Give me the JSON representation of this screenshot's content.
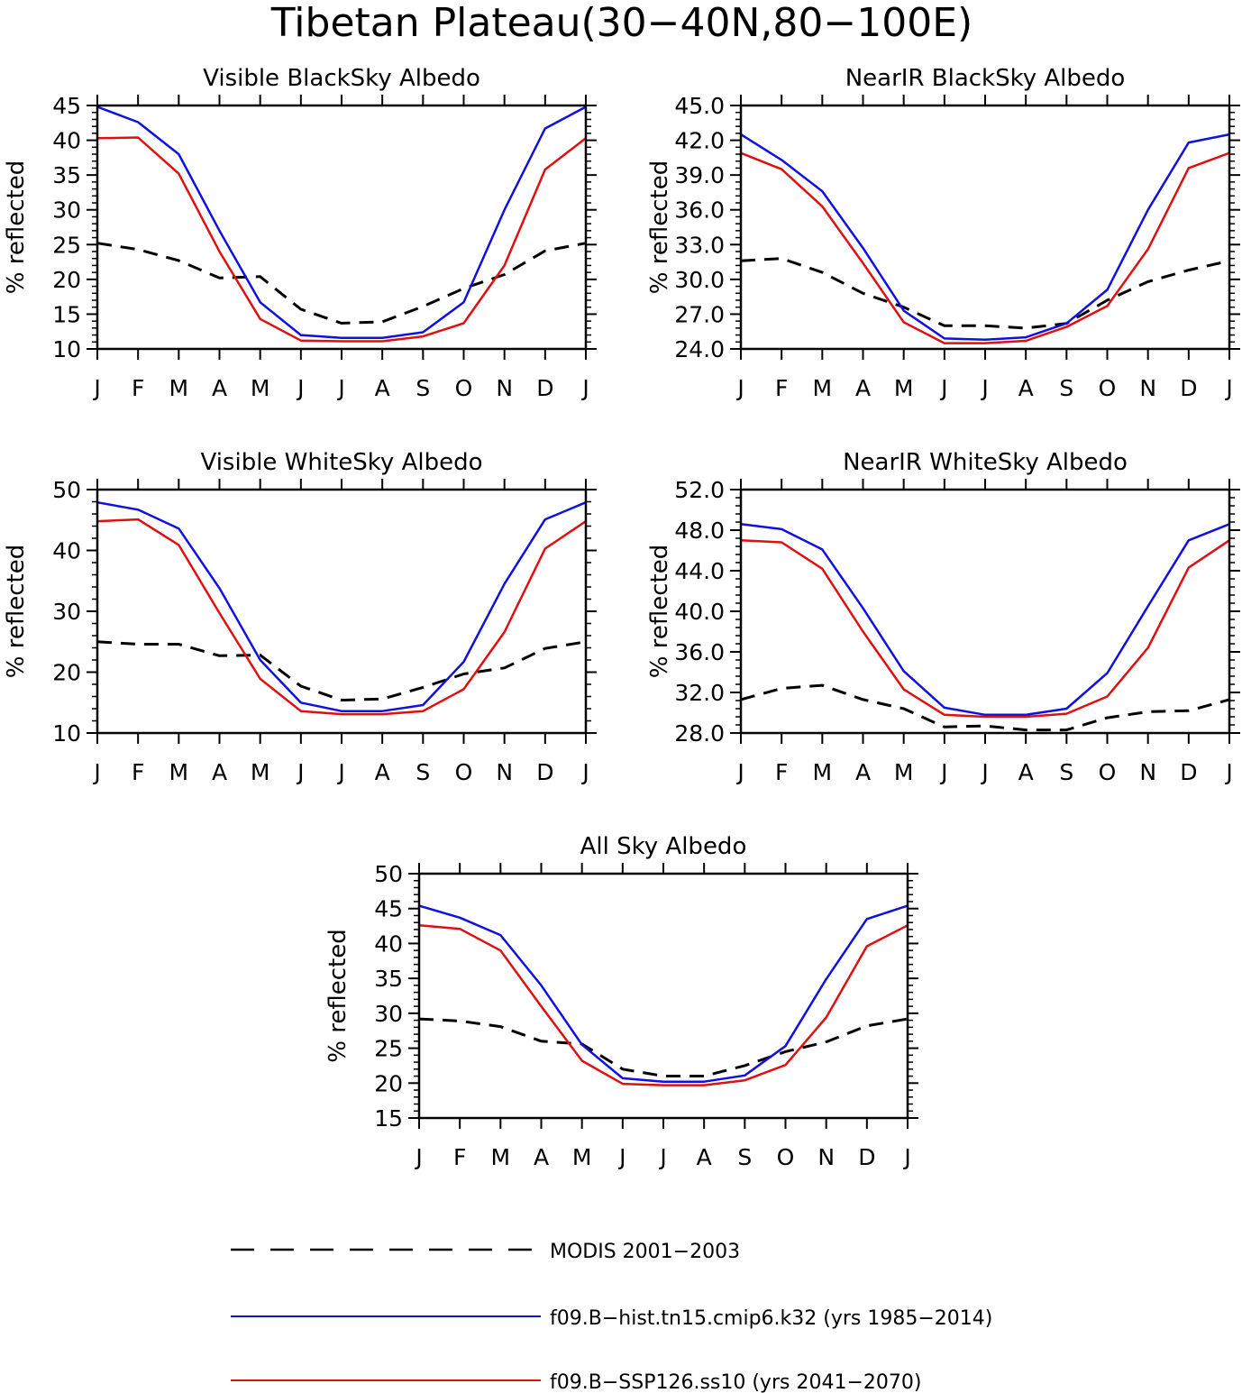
{
  "figure": {
    "title": "Tibetan Plateau(30−40N,80−100E)"
  },
  "colors": {
    "modis": "#000000",
    "hist": "#1010e0",
    "ssp": "#e01010"
  },
  "chart_data": [
    {
      "type": "line",
      "title": "Visible BlackSky Albedo",
      "ylabel": "% reflected",
      "categories": [
        "J",
        "F",
        "M",
        "A",
        "M",
        "J",
        "J",
        "A",
        "S",
        "O",
        "N",
        "D",
        "J"
      ],
      "ylim": [
        10,
        45
      ],
      "yticks": [
        "10",
        "15",
        "20",
        "25",
        "30",
        "35",
        "40",
        "45"
      ],
      "series": [
        {
          "name": "MODIS 2001−2003",
          "values": [
            25.2,
            24.3,
            22.7,
            20.2,
            20.4,
            15.7,
            13.7,
            13.9,
            16.1,
            18.7,
            20.7,
            24.1,
            25.2
          ]
        },
        {
          "name": "f09.B−hist.tn15.cmip6.k32 (yrs 1985−2014)",
          "values": [
            44.8,
            42.6,
            38.0,
            27.0,
            16.7,
            12.0,
            11.6,
            11.6,
            12.4,
            16.7,
            30.0,
            41.7,
            44.8
          ]
        },
        {
          "name": "f09.B−SSP126.ss10 (yrs 2041−2070)",
          "values": [
            40.3,
            40.4,
            35.2,
            24.0,
            14.3,
            11.2,
            11.1,
            11.1,
            11.8,
            13.7,
            22.0,
            35.8,
            40.3
          ]
        }
      ]
    },
    {
      "type": "line",
      "title": "NearIR BlackSky Albedo",
      "ylabel": "% reflected",
      "categories": [
        "J",
        "F",
        "M",
        "A",
        "M",
        "J",
        "J",
        "A",
        "S",
        "O",
        "N",
        "D",
        "J"
      ],
      "ylim": [
        24,
        45
      ],
      "yticks": [
        "24.0",
        "27.0",
        "30.0",
        "33.0",
        "36.0",
        "39.0",
        "42.0",
        "45.0"
      ],
      "series": [
        {
          "name": "MODIS 2001−2003",
          "values": [
            31.6,
            31.8,
            30.6,
            28.8,
            27.6,
            26.0,
            26.0,
            25.8,
            26.2,
            28.2,
            29.8,
            30.8,
            31.6
          ]
        },
        {
          "name": "f09.B−hist.tn15.cmip6.k32 (yrs 1985−2014)",
          "values": [
            42.5,
            40.3,
            37.6,
            32.7,
            27.3,
            24.9,
            24.8,
            25.0,
            26.2,
            29.1,
            36.0,
            41.8,
            42.5
          ]
        },
        {
          "name": "f09.B−SSP126.ss10 (yrs 2041−2070)",
          "values": [
            40.9,
            39.5,
            36.3,
            31.4,
            26.3,
            24.5,
            24.5,
            24.7,
            25.9,
            27.7,
            32.6,
            39.6,
            40.9
          ]
        }
      ]
    },
    {
      "type": "line",
      "title": "Visible WhiteSky Albedo",
      "ylabel": "% reflected",
      "categories": [
        "J",
        "F",
        "M",
        "A",
        "M",
        "J",
        "J",
        "A",
        "S",
        "O",
        "N",
        "D",
        "J"
      ],
      "ylim": [
        10,
        50
      ],
      "yticks": [
        "10",
        "20",
        "30",
        "40",
        "50"
      ],
      "series": [
        {
          "name": "MODIS 2001−2003",
          "values": [
            25.0,
            24.6,
            24.6,
            22.7,
            22.8,
            17.7,
            15.4,
            15.6,
            17.5,
            19.7,
            20.7,
            23.9,
            25.0
          ]
        },
        {
          "name": "f09.B−hist.tn15.cmip6.k32 (yrs 1985−2014)",
          "values": [
            47.9,
            46.7,
            43.6,
            33.8,
            22.0,
            15.0,
            13.6,
            13.6,
            14.6,
            21.7,
            34.5,
            45.1,
            47.9
          ]
        },
        {
          "name": "f09.B−SSP126.ss10 (yrs 2041−2070)",
          "values": [
            44.8,
            45.1,
            40.9,
            29.7,
            18.9,
            13.6,
            13.1,
            13.1,
            13.6,
            17.2,
            26.6,
            40.3,
            44.8
          ]
        }
      ]
    },
    {
      "type": "line",
      "title": "NearIR WhiteSky Albedo",
      "ylabel": "% reflected",
      "categories": [
        "J",
        "F",
        "M",
        "A",
        "M",
        "J",
        "J",
        "A",
        "S",
        "O",
        "N",
        "D",
        "J"
      ],
      "ylim": [
        28,
        52
      ],
      "yticks": [
        "28.0",
        "32.0",
        "36.0",
        "40.0",
        "44.0",
        "48.0",
        "52.0"
      ],
      "series": [
        {
          "name": "MODIS 2001−2003",
          "values": [
            31.3,
            32.4,
            32.7,
            31.3,
            30.4,
            28.6,
            28.7,
            28.3,
            28.3,
            29.5,
            30.1,
            30.2,
            31.3
          ]
        },
        {
          "name": "f09.B−hist.tn15.cmip6.k32 (yrs 1985−2014)",
          "values": [
            48.6,
            48.1,
            46.1,
            40.3,
            34.1,
            30.5,
            29.8,
            29.8,
            30.4,
            33.9,
            40.5,
            47.0,
            48.6
          ]
        },
        {
          "name": "f09.B−SSP126.ss10 (yrs 2041−2070)",
          "values": [
            47.0,
            46.8,
            44.2,
            38.0,
            32.3,
            29.8,
            29.6,
            29.6,
            29.9,
            31.6,
            36.4,
            44.3,
            47.0
          ]
        }
      ]
    },
    {
      "type": "line",
      "title": "All Sky Albedo",
      "ylabel": "% reflected",
      "categories": [
        "J",
        "F",
        "M",
        "A",
        "M",
        "J",
        "J",
        "A",
        "S",
        "O",
        "N",
        "D",
        "J"
      ],
      "ylim": [
        15,
        50
      ],
      "yticks": [
        "15",
        "20",
        "25",
        "30",
        "35",
        "40",
        "45",
        "50"
      ],
      "series": [
        {
          "name": "MODIS 2001−2003",
          "values": [
            29.2,
            28.9,
            28.1,
            26.0,
            25.6,
            22.0,
            21.0,
            21.0,
            22.5,
            24.5,
            25.9,
            28.2,
            29.2
          ]
        },
        {
          "name": "f09.B−hist.tn15.cmip6.k32 (yrs 1985−2014)",
          "values": [
            45.4,
            43.7,
            41.2,
            34.0,
            25.5,
            20.7,
            20.2,
            20.2,
            21.1,
            25.3,
            34.9,
            43.5,
            45.4
          ]
        },
        {
          "name": "f09.B−SSP126.ss10 (yrs 2041−2070)",
          "values": [
            42.6,
            42.1,
            39.0,
            31.0,
            23.2,
            19.9,
            19.7,
            19.7,
            20.4,
            22.6,
            29.4,
            39.6,
            42.6
          ]
        }
      ]
    }
  ],
  "legend": {
    "placement": "bottom-center",
    "entries": [
      {
        "label": "MODIS 2001−2003",
        "style": "dashed",
        "color": "#000000"
      },
      {
        "label": "f09.B−hist.tn15.cmip6.k32 (yrs 1985−2014)",
        "style": "solid",
        "color": "#1010e0"
      },
      {
        "label": "f09.B−SSP126.ss10 (yrs 2041−2070)",
        "style": "solid",
        "color": "#e01010"
      }
    ]
  }
}
